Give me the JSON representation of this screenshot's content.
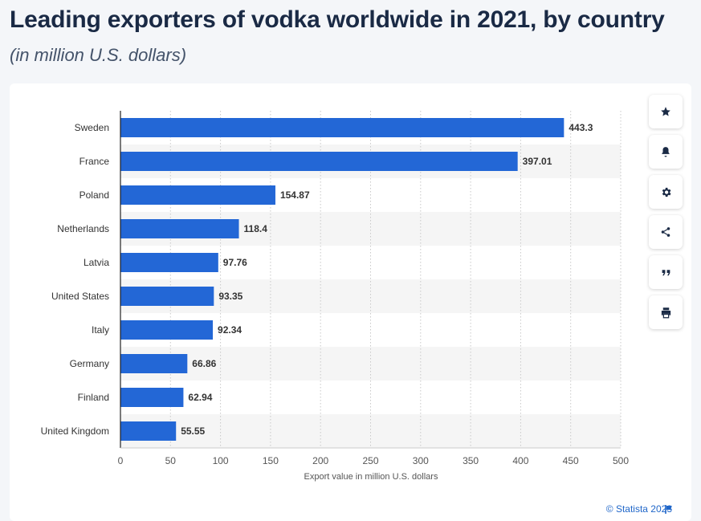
{
  "header": {
    "title": "Leading exporters of vodka worldwide in 2021, by country",
    "subtitle": "(in million U.S. dollars)"
  },
  "sidebar": {
    "buttons": [
      {
        "icon": "star-icon"
      },
      {
        "icon": "bell-icon"
      },
      {
        "icon": "gear-icon"
      },
      {
        "icon": "share-icon"
      },
      {
        "icon": "quote-icon"
      },
      {
        "icon": "print-icon"
      }
    ]
  },
  "footer": {
    "credit": "© Statista 2023",
    "flag_icon": "flag-icon"
  },
  "colors": {
    "bar": "#2367d6",
    "stripe": "#f5f5f5",
    "accent": "#1f66c9"
  },
  "chart_data": {
    "type": "bar",
    "orientation": "horizontal",
    "categories": [
      "Sweden",
      "France",
      "Poland",
      "Netherlands",
      "Latvia",
      "United States",
      "Italy",
      "Germany",
      "Finland",
      "United Kingdom"
    ],
    "values": [
      443.3,
      397.01,
      154.87,
      118.4,
      97.76,
      93.35,
      92.34,
      66.86,
      62.94,
      55.55
    ],
    "value_labels": [
      "443.3",
      "397.01",
      "154.87",
      "118.4",
      "97.76",
      "93.35",
      "92.34",
      "66.86",
      "62.94",
      "55.55"
    ],
    "xlabel": "Export value in million U.S. dollars",
    "xlim": [
      0,
      500
    ],
    "xticks": [
      0,
      50,
      100,
      150,
      200,
      250,
      300,
      350,
      400,
      450,
      500
    ],
    "grid": "vertical dotted"
  }
}
